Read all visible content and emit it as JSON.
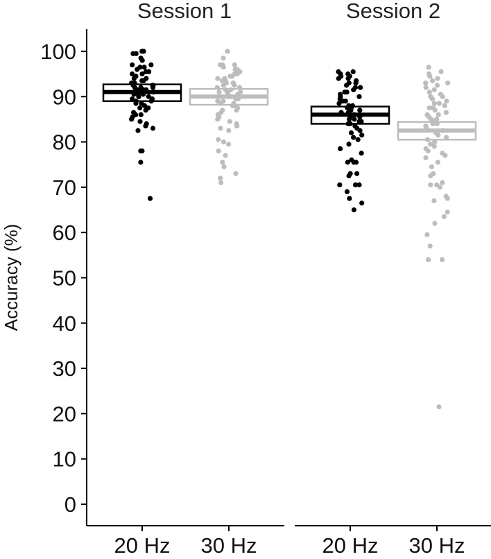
{
  "chart_data": {
    "type": "box",
    "ylabel": "Accuracy (%)",
    "ylim": [
      0,
      100
    ],
    "yticks": [
      "0",
      "10",
      "20",
      "30",
      "40",
      "50",
      "60",
      "70",
      "80",
      "90",
      "100"
    ],
    "categories": [
      "20 Hz",
      "30 Hz"
    ],
    "grid": false,
    "colors": {
      "20 Hz": "#000000",
      "30 Hz": "#bdbdbd"
    },
    "panels": [
      {
        "title": "Session 1",
        "groups": [
          {
            "category": "20 Hz",
            "box": {
              "q1": 89.0,
              "median": 91.0,
              "q3": 92.7
            },
            "points": [
              100,
              100,
              99.5,
              99.5,
              98.5,
              98,
              97,
              97,
              96.5,
              96.5,
              96,
              95.5,
              95.5,
              95,
              95,
              94.5,
              94,
              94,
              93.5,
              93.5,
              93,
              93,
              92.5,
              92.5,
              92.5,
              92,
              92,
              92,
              91.5,
              91.5,
              91.5,
              91.5,
              91,
              91,
              91,
              91,
              90.5,
              90.5,
              90.5,
              90,
              90,
              90,
              89.5,
              89.5,
              89,
              89,
              88.5,
              88.5,
              88,
              87.5,
              87.5,
              87,
              86.5,
              86,
              86,
              85.5,
              85,
              84.5,
              84,
              83.5,
              83,
              82.5,
              78,
              78,
              75.5,
              67.5
            ]
          },
          {
            "category": "30 Hz",
            "box": {
              "q1": 88.2,
              "median": 90.0,
              "q3": 91.7
            },
            "points": [
              100,
              100,
              98.5,
              97,
              97,
              97,
              96.5,
              96,
              96,
              95.5,
              95.5,
              95,
              95,
              94.5,
              94.5,
              94,
              94,
              93.5,
              93.5,
              93,
              93,
              92.5,
              92.5,
              92,
              92,
              91.5,
              91.5,
              91,
              91,
              91,
              90.5,
              90.5,
              90,
              90,
              90,
              89.5,
              89.5,
              89,
              89,
              88.5,
              88.5,
              88,
              88,
              87.5,
              87,
              87,
              86.5,
              86,
              85.5,
              85,
              84.5,
              84,
              83.5,
              83,
              82.5,
              80.5,
              80,
              79.5,
              78,
              77,
              75.5,
              74.5,
              73,
              72,
              71
            ]
          }
        ]
      },
      {
        "title": "Session 2",
        "groups": [
          {
            "category": "20 Hz",
            "box": {
              "q1": 84.0,
              "median": 86.0,
              "q3": 87.8
            },
            "points": [
              95.5,
              95.5,
              95,
              95,
              94.5,
              94.5,
              94,
              94,
              93.5,
              93,
              93,
              92.5,
              92,
              92,
              91.5,
              91,
              91,
              90.5,
              90,
              90,
              89.5,
              89,
              89,
              88.5,
              88,
              88,
              87.5,
              87.5,
              87,
              87,
              86.5,
              86.5,
              86,
              86,
              85.5,
              85.5,
              85,
              85,
              84.5,
              84.5,
              84,
              84,
              83.5,
              83,
              82.5,
              82,
              81.5,
              81,
              80.5,
              79.5,
              78.5,
              77.5,
              76,
              75.5,
              75.5,
              75.5,
              73,
              73,
              72.5,
              70.5,
              70.5,
              70.5,
              69,
              67.5,
              66.5,
              65
            ]
          },
          {
            "category": "30 Hz",
            "box": {
              "q1": 80.5,
              "median": 82.5,
              "q3": 84.4
            },
            "points": [
              96.5,
              95.5,
              95,
              94.5,
              94,
              93.5,
              93,
              93,
              92.5,
              92,
              91.5,
              91,
              90.5,
              90,
              90,
              89.5,
              89,
              88.5,
              88.5,
              88,
              87.5,
              87.5,
              87,
              86.5,
              86,
              86,
              85.5,
              85,
              85,
              84.5,
              84,
              84,
              83.5,
              83,
              82.5,
              82,
              81.5,
              81,
              80.5,
              80,
              79.5,
              79,
              78.5,
              78,
              77.5,
              77,
              76.5,
              75.5,
              74.5,
              73,
              72.5,
              71,
              70.5,
              70.5,
              70,
              68,
              67.5,
              67,
              64.5,
              63.5,
              62,
              59.5,
              57,
              54,
              54,
              21.5
            ]
          }
        ]
      }
    ]
  }
}
